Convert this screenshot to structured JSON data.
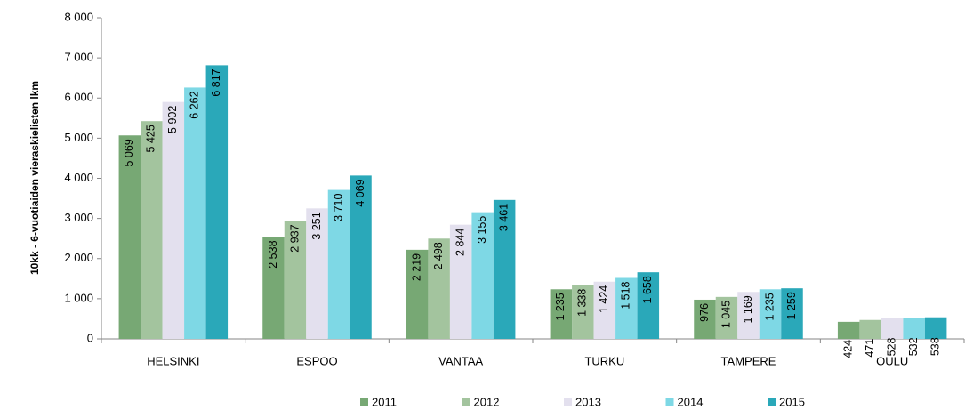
{
  "chart_data": {
    "type": "bar",
    "y_label": "10kk - 6-vuotiaiden vieraskielisten lkm",
    "categories": [
      "HELSINKI",
      "ESPOO",
      "VANTAA",
      "TURKU",
      "TAMPERE",
      "OULU"
    ],
    "series": [
      {
        "name": "2011",
        "color": "#77a874",
        "values": [
          5069,
          2538,
          2219,
          1235,
          976,
          424
        ],
        "value_labels": [
          "5 069",
          "2 538",
          "2 219",
          "1 235",
          "976",
          "424"
        ]
      },
      {
        "name": "2012",
        "color": "#a3c49e",
        "values": [
          5425,
          2937,
          2498,
          1338,
          1045,
          471
        ],
        "value_labels": [
          "5 425",
          "2 937",
          "2 498",
          "1 338",
          "1 045",
          "471"
        ]
      },
      {
        "name": "2013",
        "color": "#e3e0ee",
        "values": [
          5902,
          3251,
          2844,
          1424,
          1169,
          528
        ],
        "value_labels": [
          "5 902",
          "3 251",
          "2 844",
          "1 424",
          "1 169",
          "528"
        ]
      },
      {
        "name": "2014",
        "color": "#7ed8e5",
        "values": [
          6262,
          3710,
          3155,
          1518,
          1235,
          532
        ],
        "value_labels": [
          "6 262",
          "3 710",
          "3 155",
          "1 518",
          "1 235",
          "532"
        ]
      },
      {
        "name": "2015",
        "color": "#2aa8b9",
        "values": [
          6817,
          4069,
          3461,
          1658,
          1259,
          538
        ],
        "value_labels": [
          "6 817",
          "4 069",
          "3 461",
          "1 658",
          "1 259",
          "538"
        ]
      }
    ],
    "ylim": [
      0,
      8000
    ],
    "yticks": [
      0,
      {
        "value": 1000,
        "label": "1 000"
      },
      {
        "value": 2000,
        "label": "2 000"
      },
      {
        "value": 3000,
        "label": "3 000"
      },
      {
        "value": 4000,
        "label": "4 000"
      },
      {
        "value": 5000,
        "label": "5 000"
      },
      {
        "value": 6000,
        "label": "6 000"
      },
      {
        "value": 7000,
        "label": "7 000"
      },
      {
        "value": 8000,
        "label": "8 000"
      }
    ],
    "grid": false,
    "legend": "bottom"
  }
}
